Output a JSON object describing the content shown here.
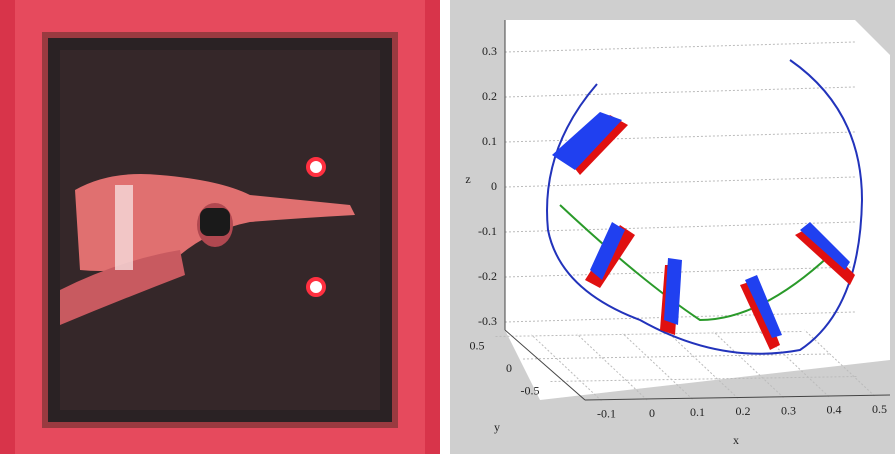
{
  "figure": {
    "z_axis": {
      "label": "z",
      "ticks": [
        0.3,
        0.2,
        0.1,
        0,
        -0.1,
        -0.2,
        -0.3
      ]
    },
    "y_axis": {
      "label": "y",
      "ticks": [
        0.5,
        0,
        -0.5
      ]
    },
    "x_axis": {
      "label": "x",
      "ticks": [
        -0.1,
        0,
        0.1,
        0.2,
        0.3,
        0.4,
        0.5
      ]
    }
  }
}
